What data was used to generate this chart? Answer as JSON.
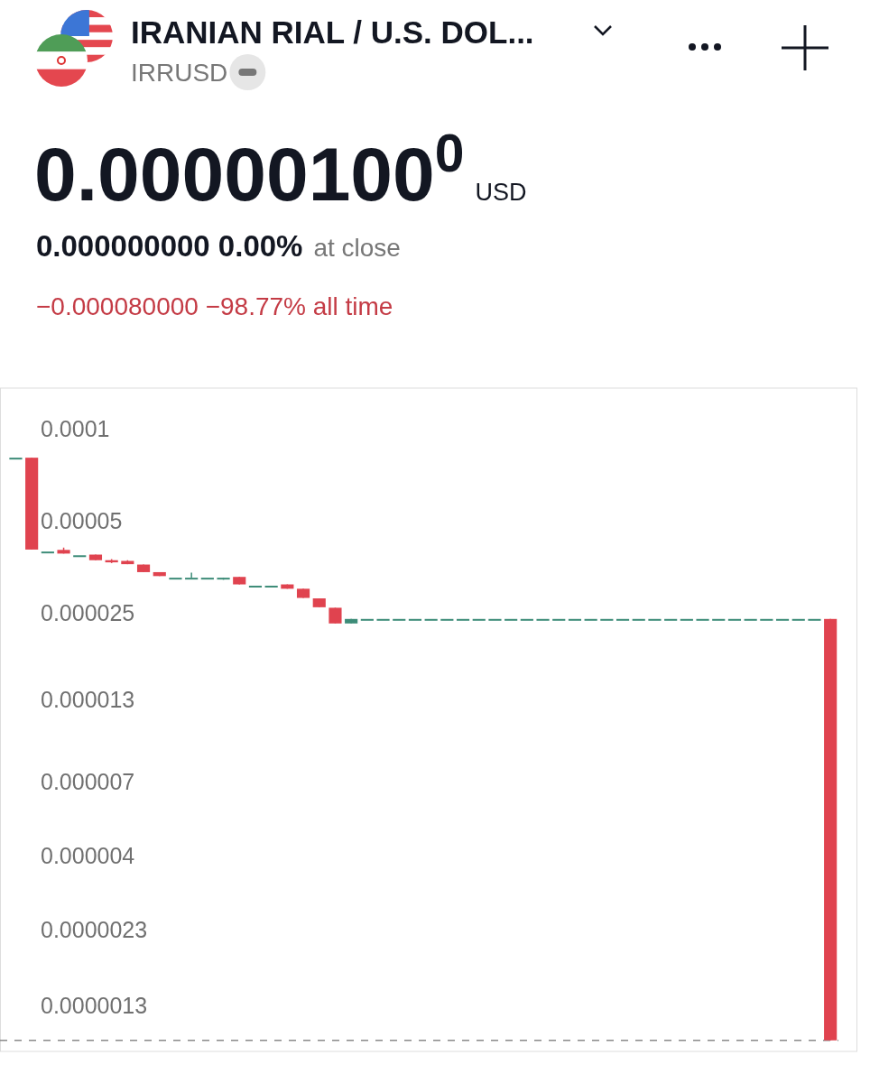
{
  "chart_data": {
    "type": "candlestick",
    "title": "IRANIAN RIAL / U.S. DOL...",
    "subtitle": "IRRUSD",
    "annotations": [
      "0.00000100$^{0}$",
      "USD",
      "0.000000000 0.00%",
      "at close",
      "−0.000080000 −98.77% all time"
    ],
    "categories": [
      null,
      null,
      null,
      null,
      null,
      null,
      null,
      null,
      null,
      null,
      null,
      null,
      null,
      null,
      null,
      null,
      null,
      null,
      null,
      null,
      null,
      null,
      null,
      null,
      null,
      null,
      null,
      null,
      null,
      null,
      null,
      null,
      null,
      null,
      null,
      null,
      null,
      null,
      null,
      null,
      null,
      null,
      null,
      null,
      null,
      null,
      null,
      null,
      null,
      null,
      null,
      null
    ],
    "ohlc": [
      [
        8.05e-05,
        8.05e-05,
        8.05e-05,
        8.05e-05
      ],
      [
        8.05e-05,
        8.05e-05,
        4.03e-05,
        4.03e-05
      ],
      [
        3.97e-05,
        3.97e-05,
        3.97e-05,
        3.97e-05
      ],
      [
        4.02e-05,
        4.09e-05,
        3.91e-05,
        3.91e-05
      ],
      [
        3.86e-05,
        3.86e-05,
        3.86e-05,
        3.86e-05
      ],
      [
        3.88e-05,
        3.88e-05,
        3.72e-05,
        3.72e-05
      ],
      [
        3.72e-05,
        3.75e-05,
        3.64e-05,
        3.66e-05
      ],
      [
        3.7e-05,
        3.72e-05,
        3.61e-05,
        3.61e-05
      ],
      [
        3.6e-05,
        3.6e-05,
        3.4e-05,
        3.4e-05
      ],
      [
        3.4e-05,
        3.4e-05,
        3.3e-05,
        3.3e-05
      ],
      [
        3.26e-05,
        3.26e-05,
        3.26e-05,
        3.26e-05
      ],
      [
        3.26e-05,
        3.39e-05,
        3.26e-05,
        3.26e-05
      ],
      [
        3.26e-05,
        3.26e-05,
        3.26e-05,
        3.26e-05
      ],
      [
        3.26e-05,
        3.26e-05,
        3.21e-05,
        3.26e-05
      ],
      [
        3.28e-05,
        3.28e-05,
        3.1e-05,
        3.1e-05
      ],
      [
        3.07e-05,
        3.07e-05,
        3.07e-05,
        3.07e-05
      ],
      [
        3.07e-05,
        3.07e-05,
        3.07e-05,
        3.07e-05
      ],
      [
        3.1e-05,
        3.1e-05,
        3e-05,
        3e-05
      ],
      [
        3e-05,
        3e-05,
        2.8e-05,
        2.8e-05
      ],
      [
        2.79e-05,
        2.79e-05,
        2.61e-05,
        2.61e-05
      ],
      [
        2.6e-05,
        2.6e-05,
        2.31e-05,
        2.31e-05
      ],
      [
        2.31e-05,
        2.39e-05,
        2.31e-05,
        2.39e-05
      ],
      [
        2.39e-05,
        2.39e-05,
        2.39e-05,
        2.39e-05
      ],
      [
        2.39e-05,
        2.39e-05,
        2.39e-05,
        2.39e-05
      ],
      [
        2.39e-05,
        2.39e-05,
        2.39e-05,
        2.39e-05
      ],
      [
        2.39e-05,
        2.39e-05,
        2.39e-05,
        2.39e-05
      ],
      [
        2.39e-05,
        2.39e-05,
        2.39e-05,
        2.39e-05
      ],
      [
        2.39e-05,
        2.39e-05,
        2.39e-05,
        2.39e-05
      ],
      [
        2.39e-05,
        2.39e-05,
        2.39e-05,
        2.39e-05
      ],
      [
        2.39e-05,
        2.39e-05,
        2.39e-05,
        2.39e-05
      ],
      [
        2.39e-05,
        2.39e-05,
        2.39e-05,
        2.39e-05
      ],
      [
        2.39e-05,
        2.39e-05,
        2.39e-05,
        2.39e-05
      ],
      [
        2.39e-05,
        2.39e-05,
        2.39e-05,
        2.39e-05
      ],
      [
        2.39e-05,
        2.39e-05,
        2.39e-05,
        2.39e-05
      ],
      [
        2.39e-05,
        2.39e-05,
        2.39e-05,
        2.39e-05
      ],
      [
        2.39e-05,
        2.39e-05,
        2.39e-05,
        2.39e-05
      ],
      [
        2.39e-05,
        2.39e-05,
        2.39e-05,
        2.39e-05
      ],
      [
        2.39e-05,
        2.39e-05,
        2.39e-05,
        2.39e-05
      ],
      [
        2.39e-05,
        2.39e-05,
        2.39e-05,
        2.39e-05
      ],
      [
        2.39e-05,
        2.39e-05,
        2.39e-05,
        2.39e-05
      ],
      [
        2.39e-05,
        2.39e-05,
        2.39e-05,
        2.39e-05
      ],
      [
        2.39e-05,
        2.39e-05,
        2.39e-05,
        2.39e-05
      ],
      [
        2.39e-05,
        2.39e-05,
        2.39e-05,
        2.39e-05
      ],
      [
        2.39e-05,
        2.39e-05,
        2.39e-05,
        2.39e-05
      ],
      [
        2.39e-05,
        2.39e-05,
        2.39e-05,
        2.39e-05
      ],
      [
        2.39e-05,
        2.39e-05,
        2.39e-05,
        2.39e-05
      ],
      [
        2.39e-05,
        2.39e-05,
        2.39e-05,
        2.39e-05
      ],
      [
        2.39e-05,
        2.39e-05,
        2.39e-05,
        2.39e-05
      ],
      [
        2.39e-05,
        2.39e-05,
        2.39e-05,
        2.39e-05
      ],
      [
        2.39e-05,
        2.39e-05,
        2.39e-05,
        2.39e-05
      ],
      [
        2.39e-05,
        2.39e-05,
        2.39e-05,
        2.39e-05
      ],
      [
        2.39e-05,
        2.39e-05,
        1e-06,
        1e-06
      ]
    ],
    "colors": [
      "#3d8c78",
      "#e0434f",
      "#3d8c78",
      "#e0434f",
      "#3d8c78",
      "#e0434f",
      "#e0434f",
      "#e0434f",
      "#e0434f",
      "#e0434f",
      "#3d8c78",
      "#3d8c78",
      "#3d8c78",
      "#3d8c78",
      "#e0434f",
      "#3d8c78",
      "#3d8c78",
      "#e0434f",
      "#e0434f",
      "#e0434f",
      "#e0434f",
      "#3d8c78",
      "#3d8c78",
      "#3d8c78",
      "#3d8c78",
      "#3d8c78",
      "#3d8c78",
      "#3d8c78",
      "#3d8c78",
      "#3d8c78",
      "#3d8c78",
      "#3d8c78",
      "#3d8c78",
      "#3d8c78",
      "#3d8c78",
      "#3d8c78",
      "#3d8c78",
      "#3d8c78",
      "#3d8c78",
      "#3d8c78",
      "#3d8c78",
      "#3d8c78",
      "#3d8c78",
      "#3d8c78",
      "#3d8c78",
      "#3d8c78",
      "#3d8c78",
      "#3d8c78",
      "#3d8c78",
      "#3d8c78",
      "#3d8c78",
      "#e0434f"
    ],
    "log": true,
    "ylim": [
      9.2e-07,
      0.000136
    ],
    "yticks": [
      0.0001,
      {
        "value": 5e-05,
        "label": "0.00005"
      },
      {
        "value": 2.5e-05,
        "label": "0.000025"
      },
      {
        "value": 1.3e-05,
        "label": "0.000013"
      },
      {
        "value": 7e-06,
        "label": "0.000007"
      },
      {
        "value": 4e-06,
        "label": "0.000004"
      },
      {
        "value": 2.3e-06,
        "label": "0.0000023"
      },
      {
        "value": 1.3e-06,
        "label": "0.0000013"
      }
    ],
    "tick_labels": "y",
    "ref_lines": [
      {
        "axis": "y",
        "value": 1e-06,
        "color": "#8a8a8a",
        "line_style": "dashed"
      }
    ]
  }
}
